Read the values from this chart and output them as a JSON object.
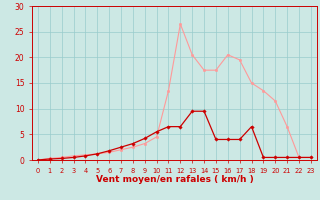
{
  "x_values": [
    0,
    1,
    2,
    3,
    4,
    5,
    6,
    7,
    8,
    9,
    10,
    11,
    12,
    13,
    14,
    15,
    16,
    17,
    18,
    19,
    20,
    21,
    22,
    23
  ],
  "pink_line": [
    0,
    0.3,
    0.5,
    0.8,
    1.0,
    1.2,
    1.5,
    2.0,
    2.5,
    3.2,
    4.5,
    13.5,
    26.5,
    20.5,
    17.5,
    17.5,
    20.5,
    19.5,
    15.0,
    13.5,
    11.5,
    6.5,
    0.5,
    0.5
  ],
  "red_line": [
    0,
    0.2,
    0.3,
    0.5,
    0.8,
    1.2,
    1.8,
    2.5,
    3.2,
    4.2,
    5.5,
    6.5,
    6.5,
    9.5,
    9.5,
    4.0,
    4.0,
    4.0,
    6.5,
    0.5,
    0.5,
    0.5,
    0.5,
    0.5
  ],
  "bg_color": "#cce8e4",
  "grid_color": "#99cccc",
  "pink_color": "#ff9999",
  "red_color": "#cc0000",
  "xlabel": "Vent moyen/en rafales ( km/h )",
  "xlabel_color": "#cc0000",
  "tick_color": "#cc0000",
  "spine_color": "#cc0000",
  "ylim": [
    0,
    30
  ],
  "xlim": [
    -0.5,
    23.5
  ],
  "yticks": [
    0,
    5,
    10,
    15,
    20,
    25,
    30
  ],
  "xticks": [
    0,
    1,
    2,
    3,
    4,
    5,
    6,
    7,
    8,
    9,
    10,
    11,
    12,
    13,
    14,
    15,
    16,
    17,
    18,
    19,
    20,
    21,
    22,
    23
  ],
  "ytick_fontsize": 5.5,
  "xtick_fontsize": 4.8,
  "xlabel_fontsize": 6.5
}
